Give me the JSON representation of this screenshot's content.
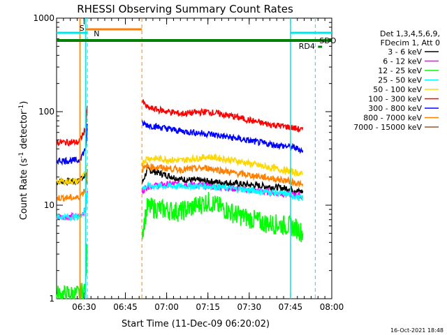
{
  "chart_data": {
    "type": "line",
    "title": "RHESSI Observing Summary Count Rates",
    "xlabel": "Start Time (11-Dec-09 06:20:02)",
    "ylabel_main": "Count Rate (s",
    "ylabel_sup1": "-1",
    "ylabel_mid": " detector",
    "ylabel_sup2": "-1",
    "ylabel_end": ")",
    "yscale": "log",
    "ylim": [
      1,
      1000
    ],
    "xlim_minutes": [
      0,
      100
    ],
    "x_ticks": [
      {
        "m": 10,
        "label": "06:30"
      },
      {
        "m": 25,
        "label": "06:45"
      },
      {
        "m": 40,
        "label": "07:00"
      },
      {
        "m": 55,
        "label": "07:15"
      },
      {
        "m": 70,
        "label": "07:30"
      },
      {
        "m": 85,
        "label": "07:45"
      },
      {
        "m": 100,
        "label": "08:00"
      }
    ],
    "y_ticks": [
      {
        "v": 1,
        "label": "1"
      },
      {
        "v": 10,
        "label": "10"
      },
      {
        "v": 100,
        "label": "100"
      },
      {
        "v": 1000,
        "label": "1000"
      }
    ],
    "legend_header": [
      "Det 1,3,4,5,6,9,",
      "FDecim 1, Att 0"
    ],
    "series": [
      {
        "name": "3 - 6 keV",
        "color": "#000000",
        "x": [
          0,
          8,
          10.6,
          11.2,
          31,
          33,
          45,
          55,
          65,
          75,
          85,
          88,
          89.5
        ],
        "y": [
          18,
          18,
          22,
          17,
          17,
          24,
          19,
          18,
          17,
          16,
          15,
          14,
          14
        ]
      },
      {
        "name": "6 - 12 keV",
        "color": "#ff00ff",
        "x": [
          0,
          8,
          10.6,
          11.2,
          31,
          33,
          45,
          55,
          65,
          75,
          85,
          88,
          89.5
        ],
        "y": [
          7.5,
          7.5,
          9,
          14,
          14,
          16,
          17,
          16,
          15,
          14,
          13,
          13,
          12
        ]
      },
      {
        "name": "12 - 25 keV",
        "color": "#00ff00",
        "x": [
          0,
          8,
          10.6,
          11.2,
          31,
          33,
          45,
          55,
          65,
          75,
          85,
          88,
          89.5
        ],
        "y": [
          1.1,
          1.1,
          1.3,
          5,
          5,
          9.5,
          8.5,
          11,
          8,
          6.5,
          6,
          5.5,
          5
        ]
      },
      {
        "name": "25 - 50 keV",
        "color": "#00ffff",
        "x": [
          0,
          8,
          10.6,
          11.2,
          31,
          33,
          45,
          55,
          65,
          75,
          85,
          88,
          89.5
        ],
        "y": [
          7.5,
          7.5,
          9,
          15,
          15,
          16,
          16,
          16,
          15,
          14,
          13,
          12,
          12
        ]
      },
      {
        "name": "50 - 100 keV",
        "color": "#ffd700",
        "x": [
          0,
          8,
          10.6,
          11.2,
          31,
          33,
          45,
          55,
          65,
          75,
          85,
          88,
          89.5
        ],
        "y": [
          18,
          18,
          22,
          28,
          28,
          32,
          30,
          33,
          30,
          26,
          23,
          22,
          21
        ]
      },
      {
        "name": "100 - 300 keV",
        "color": "#ff0000",
        "x": [
          0,
          8,
          10.6,
          11.2,
          31,
          33,
          45,
          55,
          65,
          75,
          85,
          88,
          89.5
        ],
        "y": [
          47,
          47,
          65,
          130,
          130,
          110,
          95,
          100,
          88,
          75,
          68,
          65,
          63
        ]
      },
      {
        "name": "300 - 800 keV",
        "color": "#0000ff",
        "x": [
          0,
          8,
          10.6,
          11.2,
          31,
          33,
          45,
          55,
          65,
          75,
          85,
          88,
          89.5
        ],
        "y": [
          30,
          30,
          40,
          75,
          75,
          72,
          62,
          58,
          52,
          46,
          42,
          40,
          38
        ]
      },
      {
        "name": "800 - 7000 keV",
        "color": "#ff8000",
        "x": [
          0,
          8,
          10.6,
          11.2,
          31,
          33,
          45,
          55,
          65,
          75,
          85,
          88,
          89.5
        ],
        "y": [
          12,
          12,
          15,
          24,
          24,
          26,
          24,
          25,
          22,
          20,
          18,
          17,
          16
        ]
      },
      {
        "name": "7000 - 15000 keV",
        "color": "#a0522d",
        "x": [],
        "y": []
      }
    ],
    "annotations": {
      "S": "S",
      "N": "N",
      "SDO": "SDO",
      "RD4": "RD4",
      "timestamp": "16-Oct-2021 18:48"
    },
    "attenuator_bars": {
      "orange_S": [
        10.6,
        31
      ],
      "cyan_N_left": [
        0,
        11.2
      ],
      "cyan_N_right": [
        85,
        100
      ],
      "green_SDO": [
        0,
        100
      ]
    },
    "vertical_lines": {
      "orange_solid": [
        8.5
      ],
      "orange_dashed": [
        31
      ],
      "cyan_solid": [
        10.6,
        85
      ],
      "cyan_dashed": [
        11.2,
        94
      ]
    }
  }
}
